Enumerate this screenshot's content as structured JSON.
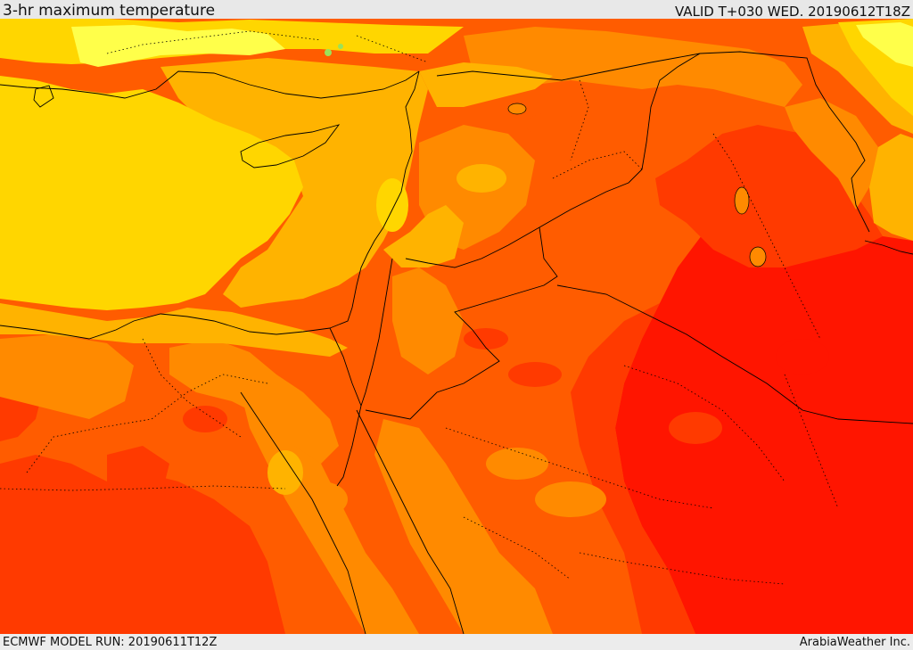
{
  "header": {
    "title": "3-hr maximum temperature",
    "valid_time": "VALID T+030 WED. 20190612T18Z"
  },
  "footer": {
    "model_run": "ECMWF MODEL RUN: 20190611T12Z",
    "credit": "ArabiaWeather Inc."
  },
  "map": {
    "field": "3-hr maximum temperature",
    "colors": {
      "pale_yellow": "#ffff4a",
      "yellow": "#ffd600",
      "gold": "#ffb300",
      "orange": "#ff8a00",
      "dark_orange": "#ff5c00",
      "red_orange": "#ff3a00",
      "red": "#ff1500",
      "green_speck": "#9be25a",
      "coastline": "#000000",
      "borders": "#000000"
    }
  }
}
